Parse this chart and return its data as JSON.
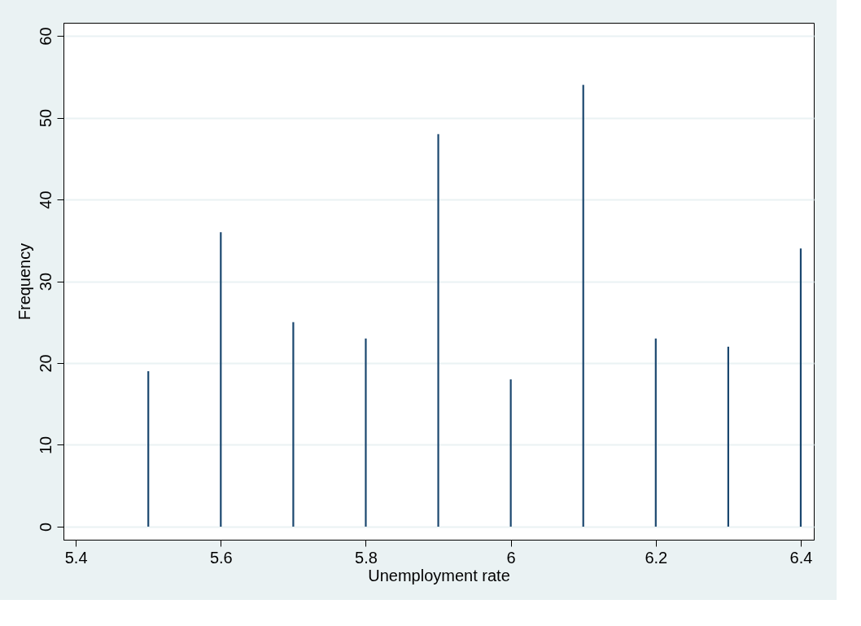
{
  "chart_data": {
    "type": "bar",
    "xlabel": "Unemployment rate",
    "ylabel": "Frequency",
    "x": [
      5.5,
      5.6,
      5.7,
      5.8,
      5.9,
      6.0,
      6.1,
      6.2,
      6.3,
      6.4
    ],
    "values": [
      19,
      36,
      25,
      23,
      48,
      18,
      54,
      23,
      22,
      34
    ],
    "color": "#1a476f",
    "xlim": [
      5.383,
      6.418
    ],
    "xticks": [
      5.4,
      5.6,
      5.8,
      6,
      6.2,
      6.4
    ],
    "ylim": [
      -1.6,
      61.6
    ],
    "yticks": [
      0,
      10,
      20,
      30,
      40,
      50,
      60
    ],
    "grid": "y"
  }
}
